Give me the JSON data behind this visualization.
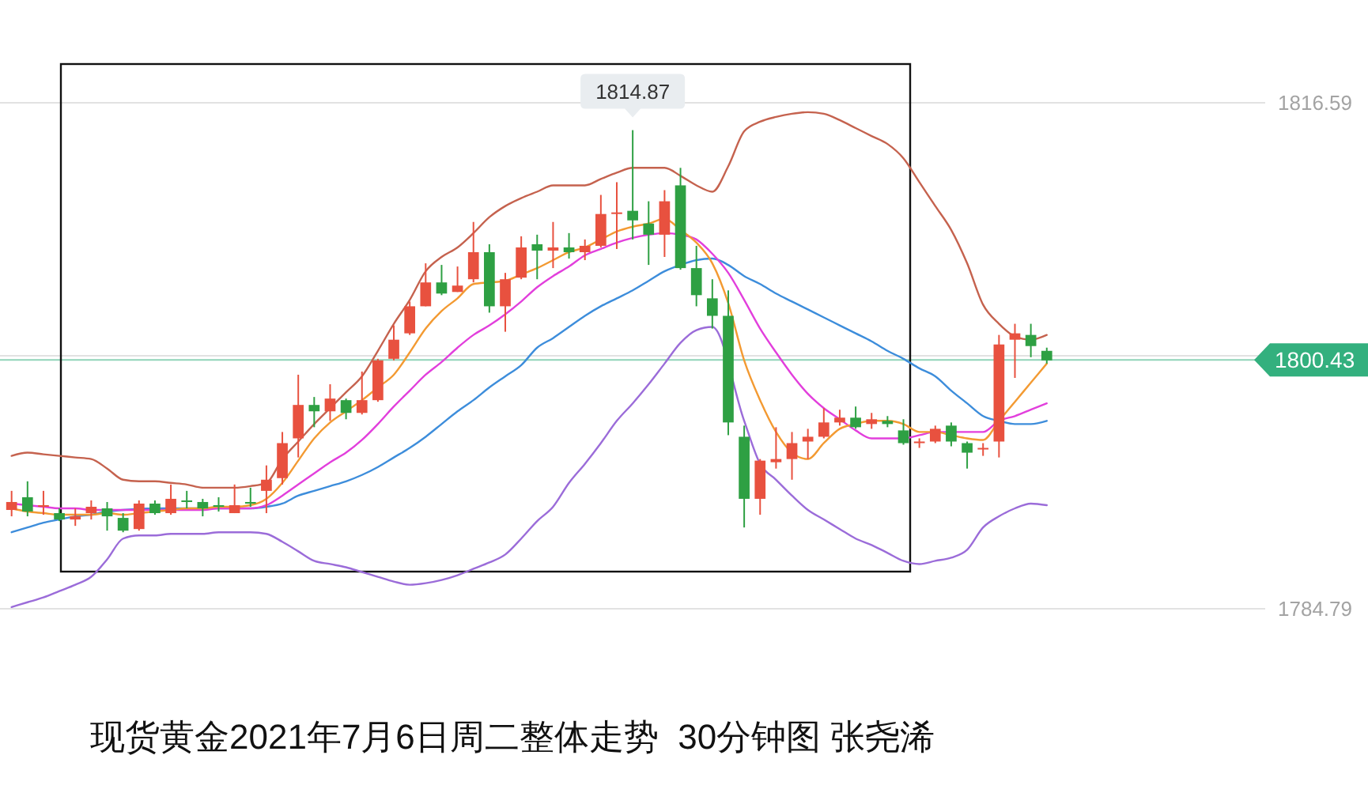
{
  "chart_data": {
    "type": "candlestick",
    "title": "现货黄金2021年7月6日周二整体走势  30分钟图 张尧浠",
    "categories": [
      null,
      null,
      null,
      null,
      null,
      null,
      null,
      null,
      null,
      null,
      null,
      null,
      null,
      null,
      null,
      null,
      null,
      null,
      null,
      null,
      null,
      null,
      null,
      null,
      null,
      null,
      null,
      null,
      null,
      null,
      null,
      null,
      null,
      null,
      null,
      null,
      null,
      null,
      null,
      null,
      null,
      null,
      null,
      null,
      null,
      null,
      null,
      null,
      null,
      null,
      null,
      null,
      null,
      null,
      null,
      null,
      null,
      null,
      null,
      null,
      null,
      null,
      null,
      null,
      null,
      null
    ],
    "ylim": [
      1784.79,
      1816.59
    ],
    "yticks": [
      1784.79,
      {
        "value": 1800.69,
        "label": null
      },
      1816.59
    ],
    "grid": "y",
    "tick_labels": "y",
    "ohlc": [
      [
        1791.0,
        1792.2,
        1790.6,
        1791.5
      ],
      [
        1791.8,
        1792.8,
        1790.6,
        1790.9
      ],
      [
        1791.2,
        1792.2,
        1790.7,
        1791.3
      ],
      [
        1790.8,
        1791.1,
        1790.3,
        1790.4
      ],
      [
        1790.4,
        1791.1,
        1790.0,
        1790.6
      ],
      [
        1790.8,
        1791.6,
        1790.4,
        1791.2
      ],
      [
        1791.1,
        1791.5,
        1789.7,
        1790.6
      ],
      [
        1790.5,
        1790.8,
        1789.6,
        1789.7
      ],
      [
        1789.8,
        1791.6,
        1789.7,
        1791.4
      ],
      [
        1791.4,
        1791.6,
        1790.7,
        1790.8
      ],
      [
        1790.8,
        1792.6,
        1790.7,
        1791.7
      ],
      [
        1791.6,
        1792.2,
        1791.1,
        1791.5
      ],
      [
        1791.5,
        1791.7,
        1790.6,
        1791.1
      ],
      [
        1791.3,
        1791.8,
        1790.9,
        1791.2
      ],
      [
        1790.8,
        1792.6,
        1790.8,
        1791.3
      ],
      [
        1791.5,
        1792.4,
        1791.2,
        1791.4
      ],
      [
        1792.2,
        1793.8,
        1790.8,
        1792.9
      ],
      [
        1793.0,
        1795.9,
        1792.6,
        1795.2
      ],
      [
        1795.5,
        1799.5,
        1794.3,
        1797.6
      ],
      [
        1797.6,
        1798.1,
        1796.2,
        1797.2
      ],
      [
        1797.2,
        1798.9,
        1796.6,
        1798.0
      ],
      [
        1797.9,
        1798.0,
        1796.7,
        1797.1
      ],
      [
        1797.1,
        1799.7,
        1797.0,
        1797.9
      ],
      [
        1797.9,
        1800.5,
        1797.8,
        1800.4
      ],
      [
        1800.5,
        1802.6,
        1800.4,
        1801.7
      ],
      [
        1802.1,
        1804.1,
        1802.0,
        1803.8
      ],
      [
        1803.8,
        1806.5,
        1803.8,
        1805.3
      ],
      [
        1805.3,
        1806.4,
        1804.5,
        1804.6
      ],
      [
        1804.7,
        1806.3,
        1804.7,
        1805.1
      ],
      [
        1805.5,
        1809.1,
        1805.3,
        1807.2
      ],
      [
        1807.2,
        1807.7,
        1803.4,
        1803.8
      ],
      [
        1803.8,
        1805.9,
        1802.2,
        1805.5
      ],
      [
        1805.6,
        1808.2,
        1805.5,
        1807.5
      ],
      [
        1807.7,
        1808.3,
        1805.5,
        1807.3
      ],
      [
        1807.3,
        1809.1,
        1806.2,
        1807.5
      ],
      [
        1807.5,
        1808.4,
        1806.8,
        1807.2
      ],
      [
        1807.2,
        1808.0,
        1806.7,
        1807.6
      ],
      [
        1807.6,
        1810.8,
        1807.5,
        1809.6
      ],
      [
        1809.6,
        1811.6,
        1807.4,
        1809.7
      ],
      [
        1809.8,
        1814.87,
        1808.0,
        1809.2
      ],
      [
        1809.0,
        1810.4,
        1806.4,
        1808.3
      ],
      [
        1808.3,
        1811.1,
        1806.9,
        1810.4
      ],
      [
        1811.4,
        1812.5,
        1806.1,
        1806.2
      ],
      [
        1806.2,
        1807.6,
        1803.8,
        1804.5
      ],
      [
        1804.3,
        1805.5,
        1802.4,
        1803.2
      ],
      [
        1803.2,
        1804.8,
        1795.7,
        1796.5
      ],
      [
        1795.6,
        1796.3,
        1789.9,
        1791.7
      ],
      [
        1791.7,
        1794.2,
        1790.7,
        1794.1
      ],
      [
        1794.0,
        1796.2,
        1793.6,
        1794.2
      ],
      [
        1794.2,
        1795.9,
        1792.9,
        1795.2
      ],
      [
        1795.3,
        1796.1,
        1794.2,
        1795.6
      ],
      [
        1795.6,
        1797.4,
        1795.5,
        1796.5
      ],
      [
        1796.5,
        1797.3,
        1796.3,
        1796.8
      ],
      [
        1796.8,
        1797.5,
        1796.1,
        1796.2
      ],
      [
        1796.4,
        1797.1,
        1796.1,
        1796.7
      ],
      [
        1796.6,
        1796.9,
        1796.2,
        1796.4
      ],
      [
        1796.0,
        1796.7,
        1795.1,
        1795.2
      ],
      [
        1795.2,
        1795.5,
        1794.9,
        1795.3
      ],
      [
        1795.3,
        1796.3,
        1795.2,
        1796.1
      ],
      [
        1796.3,
        1796.5,
        1795.0,
        1795.3
      ],
      [
        1795.2,
        1795.3,
        1793.6,
        1794.6
      ],
      [
        1794.8,
        1795.2,
        1794.4,
        1794.9
      ],
      [
        1795.3,
        1802.0,
        1794.3,
        1801.4
      ],
      [
        1801.7,
        1802.7,
        1799.3,
        1802.1
      ],
      [
        1802.0,
        1802.7,
        1800.6,
        1801.3
      ],
      [
        1801.0,
        1801.2,
        1800.2,
        1800.4
      ]
    ],
    "colors": [
      "#e8513f",
      "#2ea043",
      "#e8513f",
      "#2ea043",
      "#e8513f",
      "#e8513f",
      "#2ea043",
      "#2ea043",
      "#e8513f",
      "#2ea043",
      "#e8513f",
      "#2ea043",
      "#2ea043",
      "#2ea043",
      "#e8513f",
      "#2ea043",
      "#e8513f",
      "#e8513f",
      "#e8513f",
      "#2ea043",
      "#e8513f",
      "#2ea043",
      "#e8513f",
      "#e8513f",
      "#e8513f",
      "#e8513f",
      "#e8513f",
      "#2ea043",
      "#e8513f",
      "#e8513f",
      "#2ea043",
      "#e8513f",
      "#e8513f",
      "#2ea043",
      "#e8513f",
      "#2ea043",
      "#e8513f",
      "#e8513f",
      "#e8513f",
      "#2ea043",
      "#2ea043",
      "#e8513f",
      "#2ea043",
      "#2ea043",
      "#2ea043",
      "#2ea043",
      "#2ea043",
      "#e8513f",
      "#e8513f",
      "#e8513f",
      "#e8513f",
      "#e8513f",
      "#e8513f",
      "#2ea043",
      "#e8513f",
      "#2ea043",
      "#2ea043",
      "#e8513f",
      "#e8513f",
      "#2ea043",
      "#2ea043",
      "#e8513f",
      "#e8513f",
      "#e8513f",
      "#2ea043",
      "#2ea043"
    ],
    "series": [
      {
        "type": "line",
        "color": "#c5624e",
        "values": [
          1794.4,
          1794.6,
          1794.5,
          1794.4,
          1794.3,
          1794.2,
          1793.6,
          1792.9,
          1792.8,
          1792.8,
          1792.7,
          1792.6,
          1792.4,
          1792.4,
          1792.4,
          1792.5,
          1792.7,
          1794.2,
          1795.3,
          1796.4,
          1797.4,
          1798.4,
          1799.4,
          1801.0,
          1802.7,
          1804.2,
          1806.0,
          1806.9,
          1807.5,
          1808.4,
          1809.4,
          1810.1,
          1810.6,
          1811.0,
          1811.4,
          1811.4,
          1811.4,
          1811.8,
          1812.2,
          1812.5,
          1812.5,
          1812.5,
          1812.0,
          1811.4,
          1811.0,
          1812.6,
          1814.8,
          1815.4,
          1815.7,
          1815.9,
          1816.0,
          1815.9,
          1815.5,
          1815.0,
          1814.5,
          1814.0,
          1813.1,
          1811.6,
          1810.1,
          1808.6,
          1806.5,
          1803.9,
          1802.7,
          1801.9,
          1801.7,
          1802.0
        ]
      },
      {
        "type": "line",
        "color": "#3d8ddb",
        "values": [
          1789.6,
          1789.9,
          1790.2,
          1790.4,
          1790.6,
          1790.7,
          1790.9,
          1791.0,
          null,
          1791.1,
          1791.1,
          1791.1,
          1791.1,
          1791.1,
          1791.1,
          1791.1,
          1791.2,
          1791.4,
          1791.9,
          1792.2,
          1792.5,
          1792.8,
          1793.2,
          1793.7,
          1794.3,
          1794.9,
          1795.6,
          1796.4,
          1797.2,
          1797.9,
          1798.7,
          1799.4,
          1800.1,
          1801.2,
          1801.8,
          1802.5,
          1803.2,
          1803.8,
          1804.3,
          1804.8,
          1805.4,
          1806.0,
          1806.4,
          1806.7,
          1806.8,
          1806.4,
          1805.7,
          1805.2,
          1804.6,
          1804.1,
          1803.6,
          1803.1,
          1802.6,
          1802.1,
          1801.6,
          1801.0,
          1800.5,
          1799.9,
          1799.4,
          1798.5,
          1797.7,
          1796.9,
          1796.6,
          1796.4,
          1796.4,
          1796.6
        ]
      },
      {
        "type": "line",
        "color": "#9b6cd9",
        "values": [
          1784.9,
          1785.2,
          1785.5,
          1785.9,
          1786.3,
          1786.8,
          1787.9,
          1789.2,
          1789.4,
          1789.4,
          1789.5,
          1789.5,
          1789.5,
          1789.6,
          1789.6,
          1789.6,
          1789.5,
          1789.0,
          1788.4,
          1787.8,
          1787.6,
          1787.4,
          1787.1,
          1786.8,
          1786.5,
          1786.3,
          1786.4,
          1786.6,
          1786.9,
          1787.3,
          1787.7,
          1788.2,
          1789.2,
          1790.3,
          1791.2,
          1792.7,
          1793.9,
          1795.2,
          1796.6,
          1797.7,
          1798.9,
          1800.2,
          1801.5,
          1802.3,
          1802.5,
          null,
          1796.6,
          1793.9,
          1792.9,
          1791.9,
          1791.0,
          1790.4,
          1789.8,
          1789.2,
          1788.8,
          1788.3,
          1787.8,
          1787.6,
          1787.8,
          1788.0,
          1788.5,
          1789.9,
          1790.6,
          1791.1,
          1791.4,
          1791.3
        ]
      },
      {
        "type": "line",
        "color": "#e23fdc",
        "values": [
          1791.4,
          1791.3,
          1791.2,
          1791.1,
          1791.1,
          1791.0,
          1791.0,
          1791.0,
          1791.0,
          1791.0,
          1791.0,
          1791.0,
          1791.0,
          1791.1,
          1791.1,
          1791.1,
          1791.3,
          1791.9,
          1792.6,
          1793.3,
          1794.0,
          1794.6,
          1795.4,
          1796.4,
          1797.5,
          1798.5,
          1799.5,
          1800.3,
          1801.2,
          1802.0,
          1802.6,
          1803.3,
          1804.1,
          1805.0,
          1805.7,
          1806.3,
          1807.0,
          1807.4,
          1807.8,
          1808.1,
          1808.3,
          1808.4,
          1808.3,
          1808.0,
          1807.1,
          1805.9,
          1804.2,
          1802.4,
          1800.9,
          1799.5,
          1798.3,
          1797.4,
          1796.7,
          1796.0,
          1795.5,
          1795.5,
          1795.5,
          1795.7,
          1795.9,
          1795.9,
          1795.9,
          1795.9,
          1796.6,
          1796.9,
          1797.3,
          1797.7
        ]
      },
      {
        "type": "line",
        "color": "#f39a32",
        "values": [
          1791.1,
          1790.9,
          1790.8,
          1790.7,
          1790.7,
          1790.7,
          1790.8,
          1790.7,
          1790.8,
          1790.9,
          1791.0,
          1791.1,
          1791.1,
          1791.2,
          1791.2,
          1791.3,
          1791.7,
          1792.7,
          1794.1,
          1795.5,
          1796.5,
          1797.2,
          1797.9,
          1798.7,
          1799.5,
          1800.9,
          1802.4,
          1803.5,
          1804.3,
          1805.2,
          1805.3,
          1805.4,
          1805.8,
          1806.2,
          1806.7,
          1807.2,
          1807.5,
          1808.0,
          1808.5,
          1808.8,
          1809.0,
          1809.3,
          1808.6,
          1807.8,
          1806.5,
          1804.0,
          1800.4,
          1797.9,
          1795.9,
          1794.6,
          1794.2,
          1795.2,
          1796.1,
          1796.4,
          1796.6,
          1796.6,
          1796.4,
          1795.9,
          1795.9,
          1795.7,
          1795.5,
          1795.4,
          1796.6,
          1797.8,
          1799.0,
          1800.2
        ]
      }
    ],
    "ref_lines": [
      {
        "axis": "y",
        "value": 1800.43,
        "label": "1800.43",
        "color": "#33b07e"
      }
    ],
    "annotations": [
      {
        "text": "1814.87",
        "y": 1814.87
      }
    ]
  }
}
